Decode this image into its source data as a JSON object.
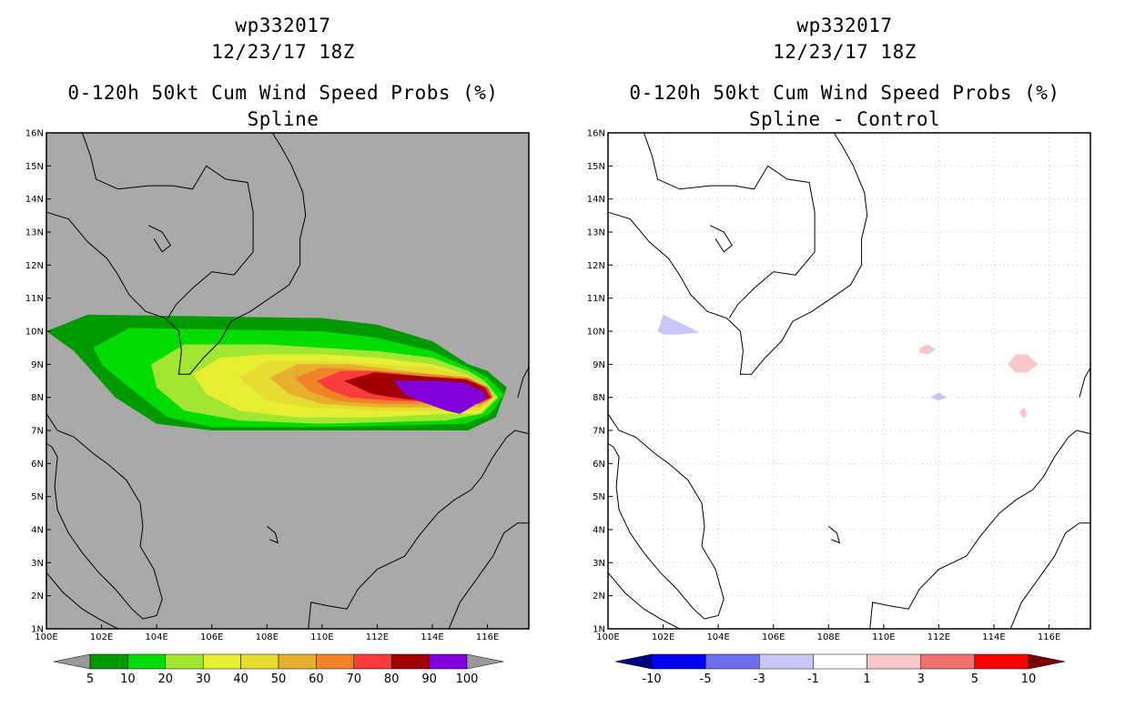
{
  "panels": [
    {
      "title_lines": [
        "wp332017",
        "12/23/17 18Z",
        "0-120h 50kt Cum Wind Speed Probs (%)",
        "Spline"
      ],
      "background": "#a9a9a9",
      "grid": false
    },
    {
      "title_lines": [
        "wp332017",
        "12/23/17 18Z",
        "0-120h 50kt Cum Wind Speed Probs (%)",
        "Spline - Control"
      ],
      "background": "#ffffff",
      "grid": true
    }
  ],
  "chart_data": [
    {
      "type": "heatmap",
      "title": "0-120h 50kt Cum Wind Speed Probs (%)",
      "subtitle": "Spline",
      "storm": "wp332017",
      "time": "12/23/17 18Z",
      "x_ticks": [
        "100E",
        "102E",
        "104E",
        "106E",
        "108E",
        "110E",
        "112E",
        "114E",
        "116E"
      ],
      "y_ticks": [
        "1N",
        "2N",
        "3N",
        "4N",
        "5N",
        "6N",
        "7N",
        "8N",
        "9N",
        "10N",
        "11N",
        "12N",
        "13N",
        "14N",
        "15N",
        "16N"
      ],
      "xlim": [
        100,
        117.5
      ],
      "ylim": [
        1,
        16
      ],
      "colorbar": {
        "labels": [
          "5",
          "10",
          "20",
          "30",
          "40",
          "50",
          "60",
          "70",
          "80",
          "90",
          "100"
        ],
        "colors": [
          "#009a00",
          "#00dc00",
          "#a0e632",
          "#e6ef32",
          "#e6dc32",
          "#e6af2d",
          "#f08228",
          "#fa3c3c",
          "#a00000",
          "#8200dc"
        ],
        "under_color": "#999999",
        "over_color": "#999999"
      },
      "contours": [
        {
          "level": 5,
          "color": "#009a00",
          "points": [
            [
              100,
              10
            ],
            [
              101.5,
              10.5
            ],
            [
              110,
              10.4
            ],
            [
              112,
              10.2
            ],
            [
              114,
              9.7
            ],
            [
              115.3,
              9.0
            ],
            [
              116.0,
              8.8
            ],
            [
              116.7,
              8.3
            ],
            [
              116.3,
              7.4
            ],
            [
              115.3,
              7.0
            ],
            [
              110,
              7.0
            ],
            [
              106,
              7.0
            ],
            [
              104,
              7.2
            ],
            [
              102.5,
              8.0
            ],
            [
              101,
              9.4
            ]
          ]
        },
        {
          "level": 10,
          "color": "#00dc00",
          "points": [
            [
              101.7,
              9.5
            ],
            [
              103,
              10.1
            ],
            [
              110,
              10.0
            ],
            [
              112,
              9.8
            ],
            [
              114,
              9.4
            ],
            [
              115.3,
              8.9
            ],
            [
              116.0,
              8.6
            ],
            [
              116.6,
              8.1
            ],
            [
              116.1,
              7.5
            ],
            [
              115.2,
              7.2
            ],
            [
              110,
              7.1
            ],
            [
              106,
              7.1
            ],
            [
              104.4,
              7.4
            ],
            [
              103,
              8.3
            ],
            [
              102,
              9.0
            ]
          ]
        },
        {
          "level": 20,
          "color": "#a0e632",
          "points": [
            [
              103.8,
              9.0
            ],
            [
              105,
              9.6
            ],
            [
              108,
              9.6
            ],
            [
              110,
              9.5
            ],
            [
              112,
              9.4
            ],
            [
              114,
              9.2
            ],
            [
              115.3,
              8.8
            ],
            [
              115.9,
              8.5
            ],
            [
              116.4,
              8.0
            ],
            [
              115.8,
              7.5
            ],
            [
              114.5,
              7.3
            ],
            [
              110,
              7.2
            ],
            [
              107,
              7.3
            ],
            [
              105,
              7.6
            ],
            [
              104,
              8.3
            ]
          ]
        },
        {
          "level": 30,
          "color": "#e6ef32",
          "points": [
            [
              105.3,
              8.7
            ],
            [
              106.3,
              9.2
            ],
            [
              108,
              9.3
            ],
            [
              110,
              9.3
            ],
            [
              112,
              9.2
            ],
            [
              114,
              9.0
            ],
            [
              115.2,
              8.7
            ],
            [
              115.8,
              8.4
            ],
            [
              116.3,
              8.0
            ],
            [
              115.7,
              7.5
            ],
            [
              114.5,
              7.5
            ],
            [
              112,
              7.4
            ],
            [
              109,
              7.4
            ],
            [
              107,
              7.6
            ],
            [
              105.8,
              8.1
            ]
          ]
        },
        {
          "level": 40,
          "color": "#e6dc32",
          "points": [
            [
              107,
              8.6
            ],
            [
              108,
              9.1
            ],
            [
              110,
              9.1
            ],
            [
              112,
              9.0
            ],
            [
              114,
              8.9
            ],
            [
              115.1,
              8.7
            ],
            [
              115.8,
              8.3
            ],
            [
              116.2,
              8.0
            ],
            [
              115.7,
              7.6
            ],
            [
              114.5,
              7.6
            ],
            [
              112,
              7.6
            ],
            [
              109.5,
              7.7
            ],
            [
              108,
              7.9
            ]
          ]
        },
        {
          "level": 50,
          "color": "#e6af2d",
          "points": [
            [
              108.1,
              8.6
            ],
            [
              109.1,
              9.0
            ],
            [
              111,
              9.0
            ],
            [
              113,
              8.8
            ],
            [
              115,
              8.6
            ],
            [
              115.8,
              8.3
            ],
            [
              116.2,
              8.0
            ],
            [
              115.7,
              7.7
            ],
            [
              114.5,
              7.7
            ],
            [
              112,
              7.7
            ],
            [
              110,
              7.8
            ],
            [
              108.8,
              8.1
            ]
          ]
        },
        {
          "level": 60,
          "color": "#f08228",
          "points": [
            [
              109.0,
              8.6
            ],
            [
              110,
              8.9
            ],
            [
              112,
              8.8
            ],
            [
              114,
              8.7
            ],
            [
              115.3,
              8.6
            ],
            [
              116.0,
              8.3
            ],
            [
              116.2,
              8.0
            ],
            [
              115.7,
              7.8
            ],
            [
              114.5,
              7.8
            ],
            [
              112,
              7.8
            ],
            [
              110.5,
              7.9
            ],
            [
              109.5,
              8.2
            ]
          ]
        },
        {
          "level": 70,
          "color": "#fa3c3c",
          "points": [
            [
              109.8,
              8.5
            ],
            [
              110.7,
              8.8
            ],
            [
              112,
              8.8
            ],
            [
              114,
              8.6
            ],
            [
              115.3,
              8.55
            ],
            [
              116.0,
              8.3
            ],
            [
              116.2,
              8.0
            ],
            [
              115.7,
              7.8
            ],
            [
              114.5,
              7.85
            ],
            [
              112.5,
              7.9
            ],
            [
              111,
              8.0
            ],
            [
              110.2,
              8.25
            ]
          ]
        },
        {
          "level": 80,
          "color": "#a00000",
          "points": [
            [
              110.8,
              8.5
            ],
            [
              111.9,
              8.75
            ],
            [
              113.5,
              8.65
            ],
            [
              115.2,
              8.55
            ],
            [
              115.9,
              8.3
            ],
            [
              116.1,
              8.0
            ],
            [
              115.6,
              7.8
            ],
            [
              114.5,
              7.85
            ],
            [
              113,
              7.95
            ],
            [
              111.8,
              8.1
            ]
          ]
        },
        {
          "level": 90,
          "color": "#8200dc",
          "points": [
            [
              112.6,
              8.5
            ],
            [
              114,
              8.5
            ],
            [
              115.1,
              8.45
            ],
            [
              115.8,
              8.2
            ],
            [
              116.0,
              8.0
            ],
            [
              115.5,
              7.75
            ],
            [
              115.0,
              7.5
            ],
            [
              114.5,
              7.6
            ],
            [
              113.5,
              7.9
            ],
            [
              113.0,
              8.1
            ]
          ]
        }
      ]
    },
    {
      "type": "heatmap",
      "title": "0-120h 50kt Cum Wind Speed Probs (%)",
      "subtitle": "Spline - Control",
      "storm": "wp332017",
      "time": "12/23/17 18Z",
      "x_ticks": [
        "100E",
        "102E",
        "104E",
        "106E",
        "108E",
        "110E",
        "112E",
        "114E",
        "116E"
      ],
      "y_ticks": [
        "1N",
        "2N",
        "3N",
        "4N",
        "5N",
        "6N",
        "7N",
        "8N",
        "9N",
        "10N",
        "11N",
        "12N",
        "13N",
        "14N",
        "15N",
        "16N"
      ],
      "xlim": [
        100,
        117.5
      ],
      "ylim": [
        1,
        16
      ],
      "colorbar": {
        "labels": [
          "-10",
          "-5",
          "-3",
          "-1",
          "1",
          "3",
          "5",
          "10"
        ],
        "colors": [
          "#0000f0",
          "#6e6eec",
          "#c8c8f8",
          "#ffffff",
          "#f8c8c8",
          "#f07070",
          "#ff0000"
        ],
        "under_color": "#000080",
        "over_color": "#7a0000"
      },
      "contours": [
        {
          "level": -3,
          "color": "#c8c8f8",
          "points": [
            [
              101.8,
              10.0
            ],
            [
              102.0,
              10.5
            ],
            [
              103.0,
              10.1
            ],
            [
              103.3,
              9.95
            ],
            [
              102.5,
              9.9
            ],
            [
              102.0,
              9.9
            ]
          ]
        },
        {
          "level": 3,
          "color": "#f8c8c8",
          "points": [
            [
              111.3,
              9.5
            ],
            [
              111.6,
              9.6
            ],
            [
              111.9,
              9.45
            ],
            [
              111.6,
              9.3
            ],
            [
              111.3,
              9.35
            ]
          ]
        },
        {
          "level": 3,
          "color": "#f8c8c8",
          "points": [
            [
              114.5,
              9.0
            ],
            [
              114.8,
              9.3
            ],
            [
              115.2,
              9.3
            ],
            [
              115.6,
              9.0
            ],
            [
              115.2,
              8.75
            ],
            [
              114.8,
              8.75
            ]
          ]
        },
        {
          "level": 3,
          "color": "#f8c8c8",
          "points": [
            [
              114.9,
              7.55
            ],
            [
              115.1,
              7.7
            ],
            [
              115.2,
              7.5
            ],
            [
              115.1,
              7.35
            ]
          ]
        },
        {
          "level": -3,
          "color": "#c8c8f8",
          "points": [
            [
              111.7,
              8.0
            ],
            [
              112.0,
              8.15
            ],
            [
              112.3,
              8.0
            ],
            [
              112.0,
              7.9
            ]
          ]
        }
      ]
    }
  ]
}
